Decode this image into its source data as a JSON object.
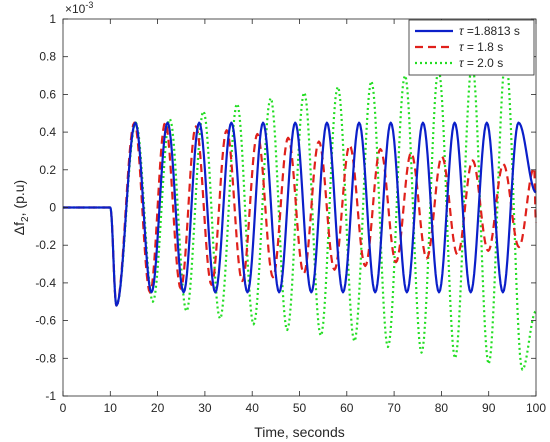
{
  "chart_data": {
    "type": "line",
    "xlabel": "Time, seconds",
    "ylabel_main": "Δf",
    "ylabel_sub": "2",
    "ylabel_tail": ", (p.u)",
    "exponent_label": "×10",
    "exponent_power": "-3",
    "xlim": [
      0,
      100
    ],
    "ylim": [
      -1,
      1
    ],
    "xticks": [
      0,
      10,
      20,
      30,
      40,
      50,
      60,
      70,
      80,
      90,
      100
    ],
    "yticks": [
      -1,
      -0.8,
      -0.6,
      -0.4,
      -0.2,
      0,
      0.2,
      0.4,
      0.6,
      0.8,
      1
    ],
    "ytick_labels": [
      "-1",
      "-0.8",
      "-0.6",
      "-0.4",
      "-0.2",
      "0",
      "0.2",
      "0.4",
      "0.6",
      "0.8",
      "1"
    ],
    "grid": false,
    "legend_position": "top-right",
    "disturbance_time": 10,
    "series": [
      {
        "name": "τ =1.8813 s",
        "legend_prefix": "τ",
        "legend_text": " =1.8813 s",
        "color": "#0b1fc9",
        "style": "solid",
        "period": 6.75,
        "peak_times": [
          15.3,
          22.1,
          28.8,
          35.6,
          42.3,
          49.1,
          55.8,
          62.6,
          69.3,
          76.1,
          82.8,
          89.6,
          96.3
        ],
        "peak_values": [
          0.45,
          0.45,
          0.45,
          0.45,
          0.45,
          0.45,
          0.45,
          0.45,
          0.45,
          0.45,
          0.45,
          0.45,
          0.45
        ],
        "trough_times": [
          11.3,
          18.7,
          25.5,
          32.2,
          39.0,
          45.7,
          52.5,
          59.2,
          66.0,
          72.7,
          79.5,
          86.2,
          93.0
        ],
        "trough_values": [
          -0.52,
          -0.45,
          -0.45,
          -0.45,
          -0.45,
          -0.45,
          -0.45,
          -0.45,
          -0.45,
          -0.45,
          -0.45,
          -0.45,
          -0.45
        ],
        "end_value": 0.08
      },
      {
        "name": "τ = 1.8 s",
        "legend_prefix": "τ",
        "legend_text": " = 1.8 s",
        "color": "#e0201b",
        "style": "dashed",
        "period": 6.5,
        "peak_times": [
          15.1,
          21.6,
          28.1,
          34.6,
          41.1,
          47.6,
          54.1,
          60.6,
          67.1,
          73.6,
          80.1,
          86.6,
          93.1,
          99.6
        ],
        "peak_values": [
          0.45,
          0.45,
          0.43,
          0.41,
          0.39,
          0.37,
          0.35,
          0.33,
          0.31,
          0.29,
          0.27,
          0.25,
          0.23,
          0.21
        ],
        "trough_times": [
          11.3,
          18.4,
          24.9,
          31.4,
          37.9,
          44.4,
          50.9,
          57.4,
          63.9,
          70.4,
          76.9,
          83.4,
          89.9,
          96.4
        ],
        "trough_values": [
          -0.52,
          -0.45,
          -0.43,
          -0.41,
          -0.39,
          -0.37,
          -0.35,
          -0.33,
          -0.31,
          -0.29,
          -0.27,
          -0.25,
          -0.23,
          -0.21
        ],
        "end_value": -0.08
      },
      {
        "name": "τ = 2.0 s",
        "legend_prefix": "τ",
        "legend_text": " = 2.0 s",
        "color": "#22dd22",
        "style": "dotted",
        "period": 7.1,
        "peak_times": [
          15.4,
          22.6,
          29.7,
          36.8,
          43.9,
          51.0,
          58.1,
          65.2,
          72.3,
          79.4,
          86.5,
          93.6
        ],
        "peak_values": [
          0.45,
          0.47,
          0.51,
          0.55,
          0.58,
          0.61,
          0.64,
          0.67,
          0.7,
          0.73,
          0.76,
          0.79
        ],
        "trough_times": [
          11.3,
          19.0,
          26.1,
          33.2,
          40.3,
          47.4,
          54.5,
          61.6,
          68.7,
          75.8,
          82.9,
          90.0,
          97.1
        ],
        "trough_values": [
          -0.52,
          -0.5,
          -0.55,
          -0.59,
          -0.62,
          -0.65,
          -0.68,
          -0.71,
          -0.74,
          -0.77,
          -0.8,
          -0.83,
          -0.86
        ],
        "end_value": -0.55
      }
    ]
  }
}
